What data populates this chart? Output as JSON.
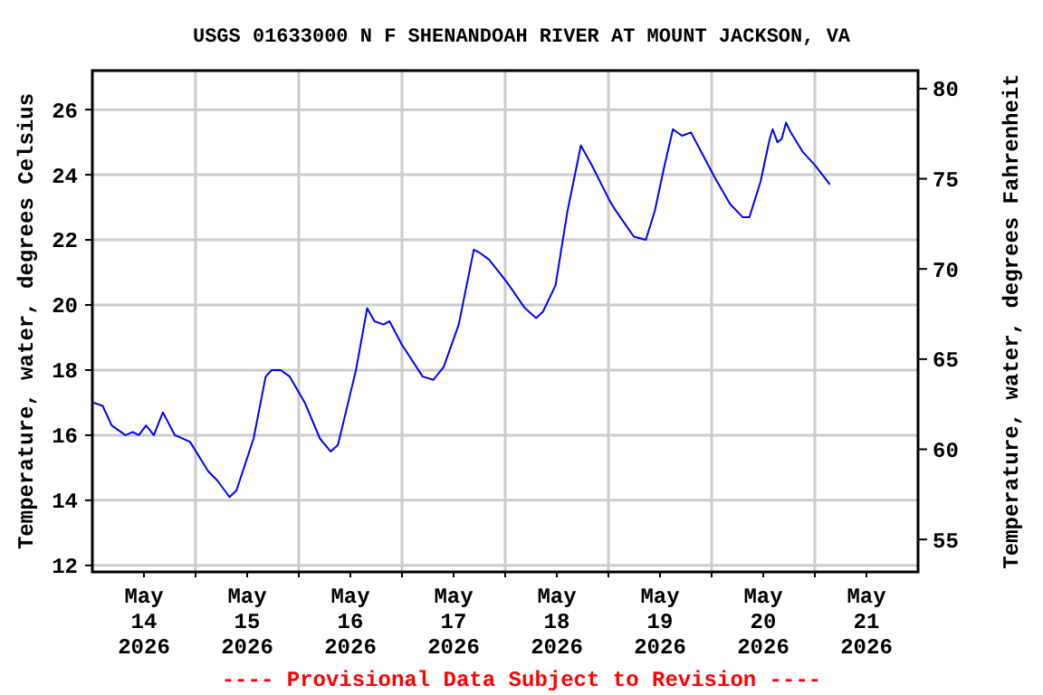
{
  "chart_data": {
    "type": "line",
    "title": "USGS 01633000 N F SHENANDOAH RIVER AT MOUNT JACKSON, VA",
    "ylabel": "Temperature, water, degrees Celsius",
    "y2label": "Temperature, water, degrees Fahrenheit",
    "annotations": [
      "---- Provisional Data Subject to Revision ----"
    ],
    "xlim": [
      "2026-05-14T00:00",
      "2026-05-22T00:00"
    ],
    "xticks": [
      {
        "value": "2026-05-14T12:00",
        "label": "May\n14\n2026"
      },
      {
        "value": "2026-05-15T00:00",
        "label": null
      },
      {
        "value": "2026-05-15T12:00",
        "label": "May\n15\n2026"
      },
      {
        "value": "2026-05-16T00:00",
        "label": null
      },
      {
        "value": "2026-05-16T12:00",
        "label": "May\n16\n2026"
      },
      {
        "value": "2026-05-17T00:00",
        "label": null
      },
      {
        "value": "2026-05-17T12:00",
        "label": "May\n17\n2026"
      },
      {
        "value": "2026-05-18T00:00",
        "label": null
      },
      {
        "value": "2026-05-18T12:00",
        "label": "May\n18\n2026"
      },
      {
        "value": "2026-05-19T00:00",
        "label": null
      },
      {
        "value": "2026-05-19T12:00",
        "label": "May\n19\n2026"
      },
      {
        "value": "2026-05-20T00:00",
        "label": null
      },
      {
        "value": "2026-05-20T12:00",
        "label": "May\n20\n2026"
      },
      {
        "value": "2026-05-21T00:00",
        "label": null
      },
      {
        "value": "2026-05-21T12:00",
        "label": "May\n21\n2026"
      }
    ],
    "ylim": [
      11.8,
      27.2
    ],
    "yticks": [
      12,
      14,
      16,
      18,
      20,
      22,
      24,
      26
    ],
    "y2lim": [
      53.2,
      81.0
    ],
    "y2ticks": [
      55,
      60,
      65,
      70,
      75,
      80
    ],
    "grid": true,
    "marker": "none",
    "line_style": "solid",
    "x": [
      "2026-05-14T00:18",
      "2026-05-14T02:24",
      "2026-05-14T04:30",
      "2026-05-14T07:42",
      "2026-05-14T09:24",
      "2026-05-14T10:48",
      "2026-05-14T12:30",
      "2026-05-14T14:18",
      "2026-05-14T16:24",
      "2026-05-14T19:12",
      "2026-05-14T22:42",
      "2026-05-15T02:54",
      "2026-05-15T05:06",
      "2026-05-15T07:54",
      "2026-05-15T09:30",
      "2026-05-15T13:30",
      "2026-05-15T16:18",
      "2026-05-15T17:42",
      "2026-05-15T19:48",
      "2026-05-15T21:54",
      "2026-05-16T01:24",
      "2026-05-16T04:54",
      "2026-05-16T07:24",
      "2026-05-16T09:06",
      "2026-05-16T13:18",
      "2026-05-16T15:54",
      "2026-05-16T17:36",
      "2026-05-16T19:42",
      "2026-05-16T21:06",
      "2026-05-16T23:54",
      "2026-05-17T04:48",
      "2026-05-17T07:18",
      "2026-05-17T09:42",
      "2026-05-17T13:12",
      "2026-05-17T16:42",
      "2026-05-17T18:06",
      "2026-05-17T20:12",
      "2026-05-18T00:24",
      "2026-05-18T04:36",
      "2026-05-18T07:12",
      "2026-05-18T08:48",
      "2026-05-18T11:42",
      "2026-05-18T14:30",
      "2026-05-18T17:36",
      "2026-05-18T20:06",
      "2026-05-19T00:18",
      "2026-05-19T01:42",
      "2026-05-19T05:54",
      "2026-05-19T08:42",
      "2026-05-19T10:48",
      "2026-05-19T12:54",
      "2026-05-19T15:00",
      "2026-05-19T17:06",
      "2026-05-19T19:12",
      "2026-05-19T22:00",
      "2026-05-20T00:48",
      "2026-05-20T04:18",
      "2026-05-20T07:12",
      "2026-05-20T08:48",
      "2026-05-20T11:24",
      "2026-05-20T13:30",
      "2026-05-20T14:12",
      "2026-05-20T15:18",
      "2026-05-20T16:18",
      "2026-05-20T17:18",
      "2026-05-20T18:24",
      "2026-05-20T21:12",
      "2026-05-21T00:00",
      "2026-05-21T03:30"
    ],
    "series": [
      {
        "color": "#0000ff",
        "values": [
          17.0,
          16.9,
          16.3,
          16.0,
          16.1,
          16.0,
          16.3,
          16.0,
          16.7,
          16.0,
          15.8,
          14.9,
          14.6,
          14.1,
          14.3,
          15.9,
          17.8,
          18.0,
          18.0,
          17.8,
          17.0,
          15.9,
          15.5,
          15.7,
          18.0,
          19.9,
          19.5,
          19.4,
          19.5,
          18.8,
          17.8,
          17.7,
          18.1,
          19.4,
          21.7,
          21.6,
          21.4,
          20.7,
          19.9,
          19.6,
          19.8,
          20.6,
          22.9,
          24.9,
          24.3,
          23.2,
          22.9,
          22.1,
          22.0,
          22.9,
          24.2,
          25.4,
          25.2,
          25.3,
          24.6,
          23.9,
          23.1,
          22.7,
          22.7,
          23.8,
          25.1,
          25.4,
          25.0,
          25.1,
          25.6,
          25.3,
          24.7,
          24.3,
          23.7
        ]
      }
    ]
  }
}
